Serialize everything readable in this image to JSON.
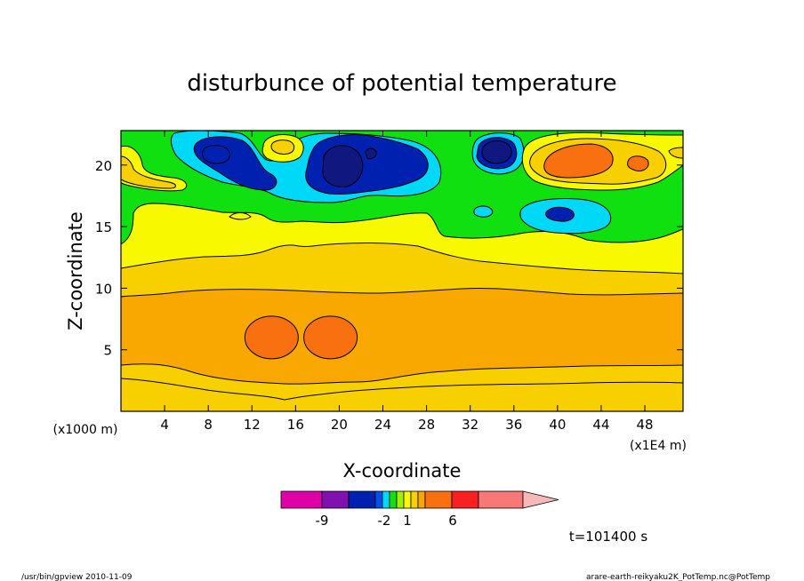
{
  "chart_data": {
    "type": "heatmap",
    "title": "disturbunce of potential temperature",
    "xlabel": "X-coordinate",
    "ylabel": "Z-coordinate",
    "x_unit_left": "(x1000 m)",
    "x_unit_right": "(x1E4 m)",
    "xlim": [
      0,
      51.5
    ],
    "ylim": [
      0,
      22.8
    ],
    "xticks": [
      4,
      8,
      12,
      16,
      20,
      24,
      28,
      32,
      36,
      40,
      44,
      48
    ],
    "yticks": [
      5,
      10,
      15,
      20
    ],
    "time_label": "t=101400 s",
    "colorbar": {
      "labels": [
        {
          "value": -9,
          "text": "-9"
        },
        {
          "value": -2,
          "text": "-2"
        },
        {
          "value": 1,
          "text": "1"
        },
        {
          "value": 6,
          "text": "6"
        }
      ],
      "bins": [
        {
          "color": "#e000a8"
        },
        {
          "color": "#8010b0"
        },
        {
          "color": "#0020b0"
        },
        {
          "color": "#0050f0"
        },
        {
          "color": "#00d8f8"
        },
        {
          "color": "#10e010"
        },
        {
          "color": "#a0f000"
        },
        {
          "color": "#f8f800"
        },
        {
          "color": "#f8d000"
        },
        {
          "color": "#f8a800"
        },
        {
          "color": "#f87010"
        },
        {
          "color": "#f82020"
        },
        {
          "color": "#f87878"
        },
        {
          "color": "#f8b8b8"
        }
      ]
    },
    "layers": [
      {
        "z_top": 1.2,
        "color": "#f8d000"
      },
      {
        "z_top": 3.8,
        "color": "#f8d000"
      },
      {
        "z_top": 9.5,
        "color": "#f8a800"
      },
      {
        "z_top": 11.2,
        "color": "#f8d000"
      },
      {
        "z_top": 13.5,
        "color": "#f8f800"
      },
      {
        "z_top": 17.5,
        "color": "#10e010"
      },
      {
        "z_top": 22.8,
        "color": "#00d8f8"
      }
    ],
    "blobs": [
      {
        "x": 13.8,
        "z": 6.0,
        "value": 5,
        "color": "#f87010"
      },
      {
        "x": 19.2,
        "z": 6.0,
        "value": 5,
        "color": "#f87010"
      },
      {
        "x": 10.0,
        "z": 21.2,
        "value": -4,
        "color": "#0020b0"
      },
      {
        "x": 20.0,
        "z": 20.7,
        "value": -5,
        "color": "#0020b0"
      },
      {
        "x": 34.5,
        "z": 20.9,
        "value": -4,
        "color": "#0020b0"
      },
      {
        "x": 40.2,
        "z": 15.9,
        "value": -3,
        "color": "#0050f0"
      },
      {
        "x": 42.5,
        "z": 20.6,
        "value": 4,
        "color": "#f87010"
      },
      {
        "x": 15.0,
        "z": 21.5,
        "value": 2,
        "color": "#f8f800"
      }
    ]
  },
  "footer": {
    "left": "/usr/bin/gpview   2010-11-09",
    "right": "arare-earth-reikyaku2K_PotTemp.nc@PotTemp"
  }
}
